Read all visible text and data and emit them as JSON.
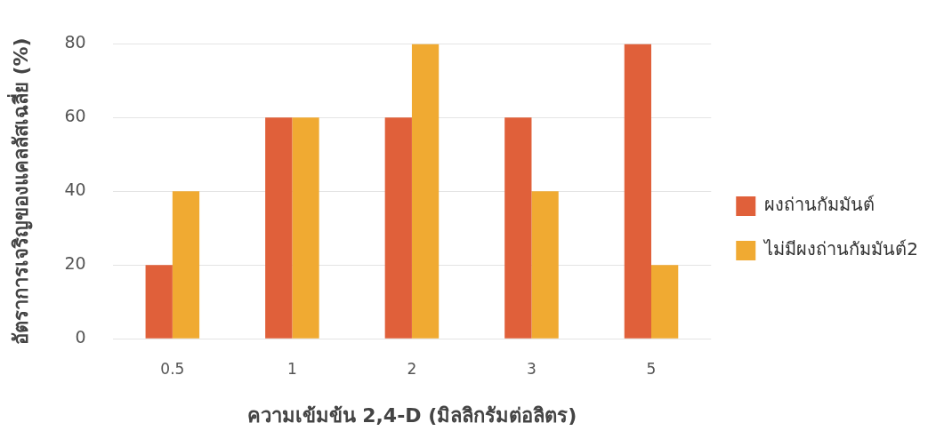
{
  "chart_data": {
    "type": "bar",
    "xlabel": "ความเข้มข้น 2,4-D (มิลลิกรัมต่อลิตร)",
    "ylabel": "อัตราการเจริญของแคลลัสเฉลี่ย (%)",
    "categories": [
      "0.5",
      "1",
      "2",
      "3",
      "5"
    ],
    "series": [
      {
        "name": "ผงถ่านกัมมันต์",
        "color": "#e0603a",
        "values": [
          20,
          60,
          60,
          60,
          80
        ]
      },
      {
        "name": "ไม่มีผงถ่านกัมมันต์2",
        "color": "#f0aa32",
        "values": [
          40,
          60,
          80,
          40,
          20
        ]
      }
    ],
    "ylim": [
      0,
      80
    ],
    "yticks": [
      0,
      20,
      40,
      60,
      80
    ],
    "grid": "y",
    "legend": "right"
  }
}
